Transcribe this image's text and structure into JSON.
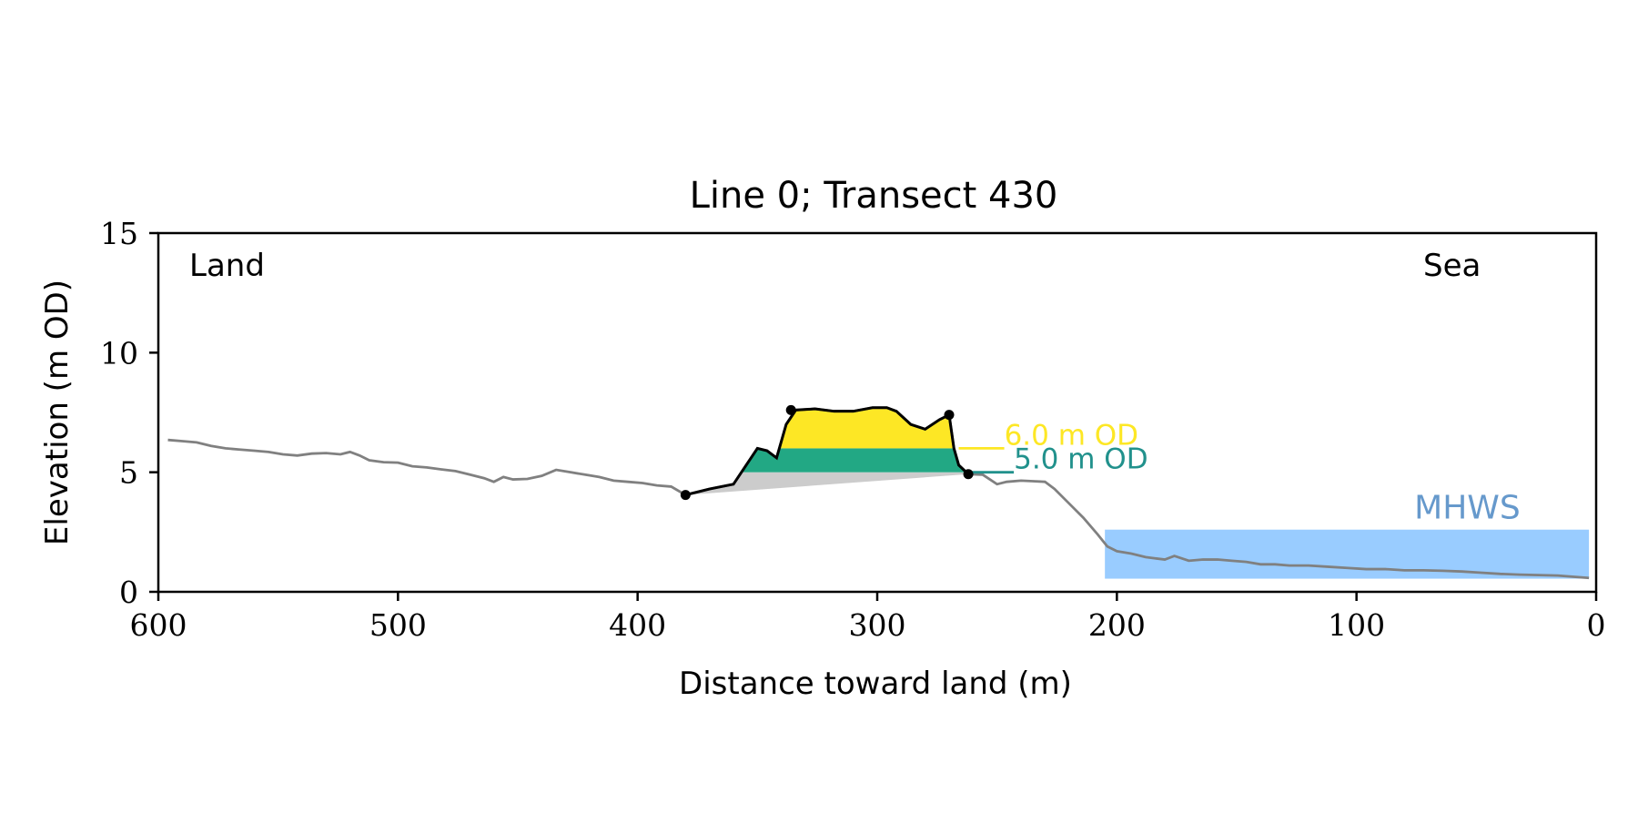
{
  "chart_data": {
    "type": "line",
    "title": "Line 0; Transect 430",
    "xlabel": "Distance toward land (m)",
    "ylabel": "Elevation (m OD)",
    "xlim": [
      600,
      0
    ],
    "ylim": [
      0,
      15
    ],
    "x_ticks": [
      600,
      500,
      400,
      300,
      200,
      100,
      0
    ],
    "y_ticks": [
      0,
      5,
      10,
      15
    ],
    "grid": false,
    "annotations": {
      "land": "Land",
      "sea": "Sea"
    },
    "mhws": {
      "label": "MHWS",
      "level": 2.6,
      "x_from": 205,
      "x_to": 3,
      "color": "#99ccff",
      "label_color": "#6699cc"
    },
    "levels": [
      {
        "label": "6.0 m OD",
        "value": 6.0,
        "color": "#fde725"
      },
      {
        "label": "5.0 m OD",
        "value": 5.0,
        "color": "#21918c"
      }
    ],
    "colors": {
      "profile": "#808080",
      "dune": "#000000",
      "fill_6m": "#fde725",
      "fill_5m": "#22a884",
      "fill_base": "#cccccc"
    },
    "profile": {
      "x": [
        596,
        590,
        584,
        578,
        572,
        566,
        560,
        554,
        548,
        542,
        536,
        530,
        524,
        520,
        516,
        512,
        506,
        500,
        494,
        488,
        482,
        476,
        470,
        464,
        460,
        456,
        452,
        446,
        440,
        434,
        428,
        422,
        416,
        410,
        404,
        398,
        392,
        386,
        380,
        370,
        360,
        354,
        350,
        346,
        342,
        338,
        334,
        326,
        318,
        310,
        302,
        296,
        292,
        286,
        280,
        274,
        270,
        268,
        266,
        262,
        256,
        250,
        246,
        240,
        234,
        230,
        226,
        220,
        214,
        208,
        204,
        200,
        194,
        188,
        184,
        180,
        176,
        170,
        164,
        158,
        152,
        146,
        140,
        134,
        128,
        120,
        112,
        104,
        96,
        88,
        80,
        72,
        64,
        56,
        48,
        40,
        32,
        24,
        16,
        8,
        3
      ],
      "y": [
        6.35,
        6.3,
        6.25,
        6.1,
        6.0,
        5.95,
        5.9,
        5.85,
        5.75,
        5.7,
        5.78,
        5.8,
        5.75,
        5.85,
        5.7,
        5.5,
        5.42,
        5.4,
        5.25,
        5.2,
        5.12,
        5.05,
        4.9,
        4.75,
        4.6,
        4.8,
        4.7,
        4.72,
        4.85,
        5.1,
        5.0,
        4.9,
        4.8,
        4.65,
        4.6,
        4.55,
        4.45,
        4.4,
        4.05,
        4.3,
        4.5,
        5.4,
        6.0,
        5.9,
        5.6,
        7.0,
        7.6,
        7.65,
        7.55,
        7.55,
        7.7,
        7.7,
        7.55,
        7.0,
        6.8,
        7.2,
        7.4,
        6.0,
        5.3,
        4.92,
        4.9,
        4.5,
        4.6,
        4.65,
        4.62,
        4.6,
        4.3,
        3.7,
        3.1,
        2.4,
        1.9,
        1.7,
        1.6,
        1.45,
        1.4,
        1.35,
        1.5,
        1.3,
        1.35,
        1.35,
        1.3,
        1.25,
        1.15,
        1.15,
        1.1,
        1.1,
        1.05,
        1.0,
        0.95,
        0.95,
        0.9,
        0.9,
        0.88,
        0.85,
        0.8,
        0.75,
        0.72,
        0.7,
        0.68,
        0.62,
        0.58
      ]
    },
    "dune": {
      "x": [
        380,
        370,
        360,
        354,
        350,
        346,
        342,
        338,
        334,
        326,
        318,
        310,
        302,
        296,
        292,
        286,
        280,
        274,
        270,
        268,
        266,
        262
      ],
      "y": [
        4.05,
        4.3,
        4.5,
        5.4,
        6.0,
        5.9,
        5.6,
        7.0,
        7.6,
        7.65,
        7.55,
        7.55,
        7.7,
        7.7,
        7.55,
        7.0,
        6.8,
        7.2,
        7.4,
        6.0,
        5.3,
        4.92
      ]
    },
    "markers": [
      {
        "x": 380,
        "y": 4.05
      },
      {
        "x": 336,
        "y": 7.6
      },
      {
        "x": 270,
        "y": 7.4
      },
      {
        "x": 262,
        "y": 4.92
      }
    ]
  }
}
